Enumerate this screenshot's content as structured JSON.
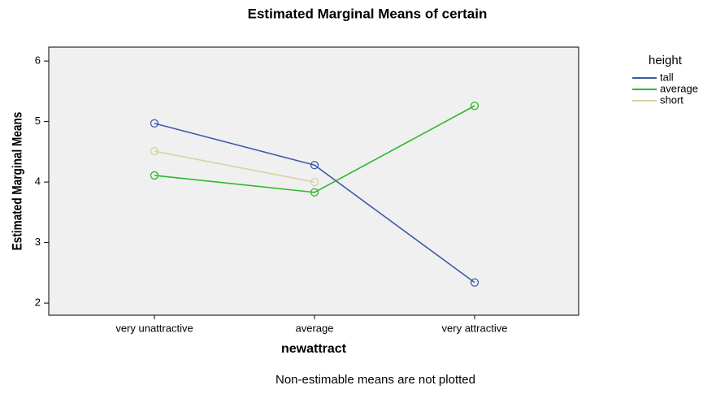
{
  "chart_data": {
    "type": "line",
    "title": "Estimated Marginal Means of certain",
    "x_label": "newattract",
    "y_label": "Estimated Marginal Means",
    "footnote": "Non-estimable means are not plotted",
    "legend_title": "height",
    "legend_position": "right",
    "categories": [
      "very unattractive",
      "average",
      "very attractive"
    ],
    "series": [
      {
        "name": "tall",
        "color": "#3e5aa8",
        "values": [
          4.97,
          4.28,
          2.34
        ]
      },
      {
        "name": "average",
        "color": "#2eb82e",
        "values": [
          4.11,
          3.83,
          5.26
        ]
      },
      {
        "name": "short",
        "color": "#d8d0a0",
        "values": [
          4.51,
          4.0,
          null
        ]
      }
    ],
    "ylim": [
      1.8,
      6.23
    ],
    "yticks": [
      2,
      3,
      4,
      5,
      6
    ],
    "plot_background": "#f0f0f0"
  }
}
